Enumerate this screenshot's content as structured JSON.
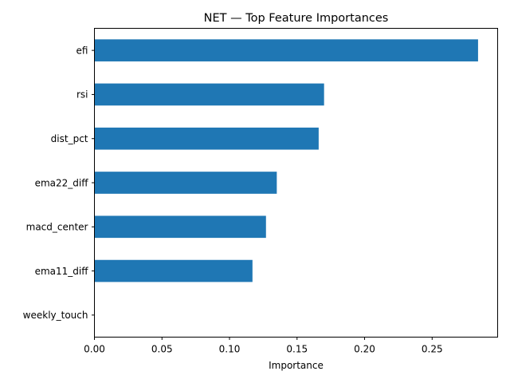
{
  "chart_data": {
    "type": "bar",
    "orientation": "horizontal",
    "title": "NET — Top Feature Importances",
    "xlabel": "Importance",
    "ylabel": "",
    "categories": [
      "efi",
      "rsi",
      "dist_pct",
      "ema22_diff",
      "macd_center",
      "ema11_diff",
      "weekly_touch"
    ],
    "values": [
      0.284,
      0.17,
      0.166,
      0.135,
      0.127,
      0.117,
      0.0
    ],
    "xlim": [
      0,
      0.2985
    ],
    "xticks": [
      0.0,
      0.05,
      0.1,
      0.15,
      0.2,
      0.25
    ],
    "xtick_labels": [
      "0.00",
      "0.05",
      "0.10",
      "0.15",
      "0.20",
      "0.25"
    ],
    "bar_color": "#1f77b4",
    "grid": false,
    "legend": "none"
  }
}
